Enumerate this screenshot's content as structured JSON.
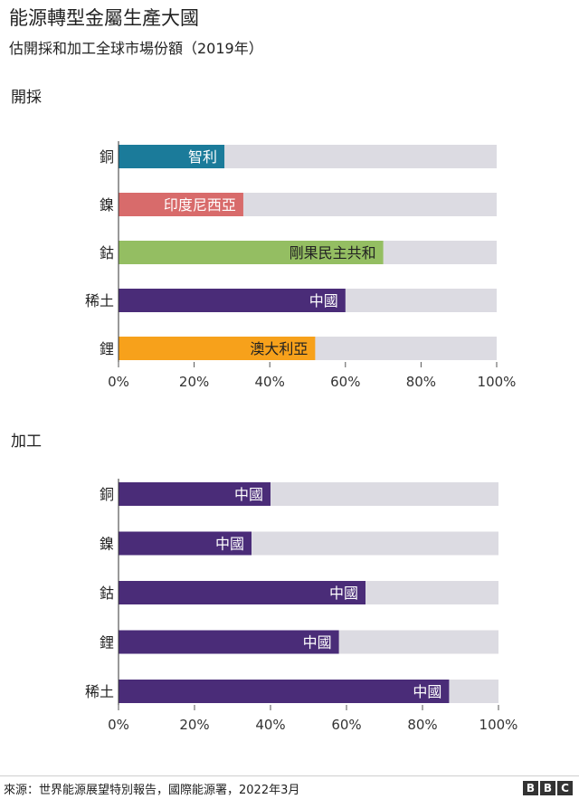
{
  "header": {
    "title": "能源轉型金屬生產大國",
    "subtitle": "估開採和加工全球市場份額（2019年）"
  },
  "chart_data": [
    {
      "type": "bar",
      "section": "開採",
      "categories": [
        "銅",
        "鎳",
        "鈷",
        "稀土",
        "鋰"
      ],
      "values": [
        28,
        33,
        70,
        60,
        52
      ],
      "bar_labels": [
        "智利",
        "印度尼西亞",
        "剛果民主共和",
        "中國",
        "澳大利亞"
      ],
      "bar_colors": [
        "#1b7b9a",
        "#d86b6b",
        "#94be62",
        "#4a2c78",
        "#f7a11b"
      ],
      "xlim": [
        0,
        100
      ],
      "xticks": [
        "0%",
        "20%",
        "40%",
        "60%",
        "80%",
        "100%"
      ],
      "background_color": "#dcdbe2"
    },
    {
      "type": "bar",
      "section": "加工",
      "categories": [
        "銅",
        "鎳",
        "鈷",
        "鋰",
        "稀土"
      ],
      "values": [
        40,
        35,
        65,
        58,
        87
      ],
      "bar_labels": [
        "中國",
        "中國",
        "中國",
        "中國",
        "中國"
      ],
      "bar_colors": [
        "#4a2c78",
        "#4a2c78",
        "#4a2c78",
        "#4a2c78",
        "#4a2c78"
      ],
      "xlim": [
        0,
        100
      ],
      "xticks": [
        "0%",
        "20%",
        "40%",
        "60%",
        "80%",
        "100%"
      ],
      "background_color": "#dcdbe2"
    }
  ],
  "footer": {
    "source": "來源：世界能源展望特別報告，國際能源署，2022年3月",
    "logo": [
      "B",
      "B",
      "C"
    ]
  }
}
